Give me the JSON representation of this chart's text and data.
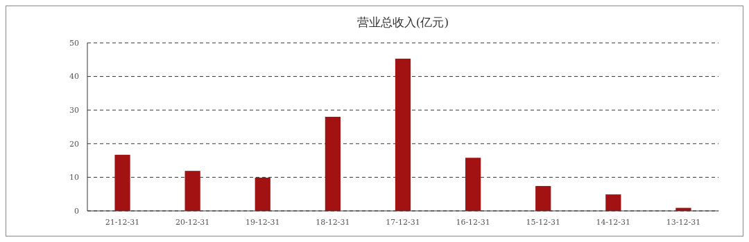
{
  "chart_data": {
    "type": "bar",
    "title": "营业总收入(亿元)",
    "categories": [
      "21-12-31",
      "20-12-31",
      "19-12-31",
      "18-12-31",
      "17-12-31",
      "16-12-31",
      "15-12-31",
      "14-12-31",
      "13-12-31"
    ],
    "values": [
      16.7,
      11.9,
      9.9,
      28,
      45.3,
      15.8,
      7.4,
      4.9,
      0.9
    ],
    "color": "#a31212",
    "ylim": [
      0,
      50
    ],
    "yticks": [
      0,
      10,
      20,
      30,
      40,
      50
    ],
    "grid": "y"
  }
}
